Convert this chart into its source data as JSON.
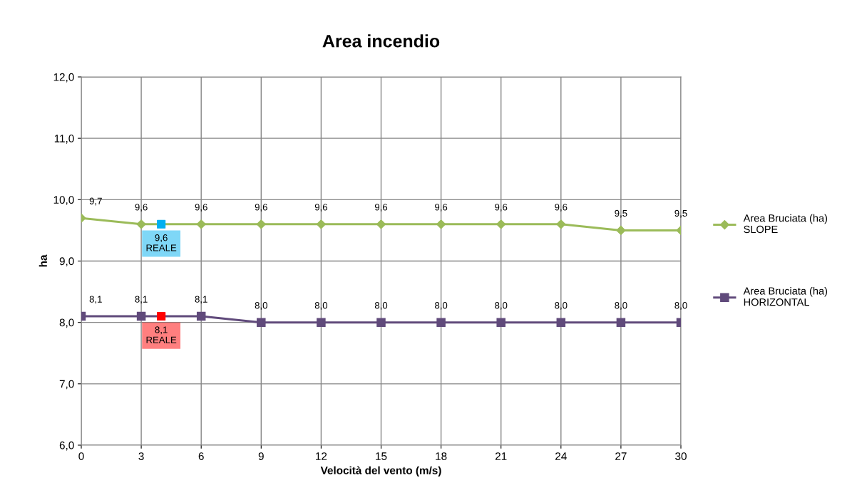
{
  "chart_data": {
    "type": "line",
    "title": "Area incendio",
    "xlabel": "Velocità del vento (m/s)",
    "ylabel": "ha",
    "xlim": [
      0,
      30
    ],
    "xticks": [
      0,
      3,
      6,
      9,
      12,
      15,
      18,
      21,
      24,
      27,
      30
    ],
    "ylim": [
      6,
      12
    ],
    "yticks": [
      {
        "value": 6,
        "label": "6,0"
      },
      {
        "value": 7,
        "label": "7,0"
      },
      {
        "value": 8,
        "label": "8,0"
      },
      {
        "value": 9,
        "label": "9,0"
      },
      {
        "value": 10,
        "label": "10,0"
      },
      {
        "value": 11,
        "label": "11,0"
      },
      {
        "value": 12,
        "label": "12,0"
      }
    ],
    "grid": true,
    "legend": "right",
    "line_style": "solid",
    "series": [
      {
        "name": "Area Bruciata (ha)\nSLOPE",
        "color": "#9bbb59",
        "marker": "diamond",
        "x": [
          0,
          3,
          6,
          9,
          12,
          15,
          18,
          21,
          24,
          27,
          30
        ],
        "values": [
          9.7,
          9.6,
          9.6,
          9.6,
          9.6,
          9.6,
          9.6,
          9.6,
          9.6,
          9.5,
          9.5
        ],
        "value_labels": [
          "9,7",
          "9,6",
          "9,6",
          "9,6",
          "9,6",
          "9,6",
          "9,6",
          "9,6",
          "9,6",
          "9,5",
          "9,5"
        ]
      },
      {
        "name": "Area Bruciata (ha)\nHORIZONTAL",
        "color": "#604a7b",
        "marker": "square",
        "x": [
          0,
          3,
          6,
          9,
          12,
          15,
          18,
          21,
          24,
          27,
          30
        ],
        "values": [
          8.1,
          8.1,
          8.1,
          8.0,
          8.0,
          8.0,
          8.0,
          8.0,
          8.0,
          8.0,
          8.0
        ],
        "value_labels": [
          "8,1",
          "8,1",
          "8,1",
          "8,0",
          "8,0",
          "8,0",
          "8,0",
          "8,0",
          "8,0",
          "8,0",
          "8,0"
        ]
      },
      {
        "type": "scatter",
        "color": "#00b0f0",
        "marker": "square",
        "x": [
          4
        ],
        "values": [
          9.6
        ],
        "value_labels": [
          "9,6\nREALE"
        ]
      },
      {
        "type": "scatter",
        "color": "#ff0000",
        "marker": "square",
        "x": [
          4
        ],
        "values": [
          8.1
        ],
        "value_labels": [
          "8,1\nREALE"
        ]
      }
    ]
  }
}
